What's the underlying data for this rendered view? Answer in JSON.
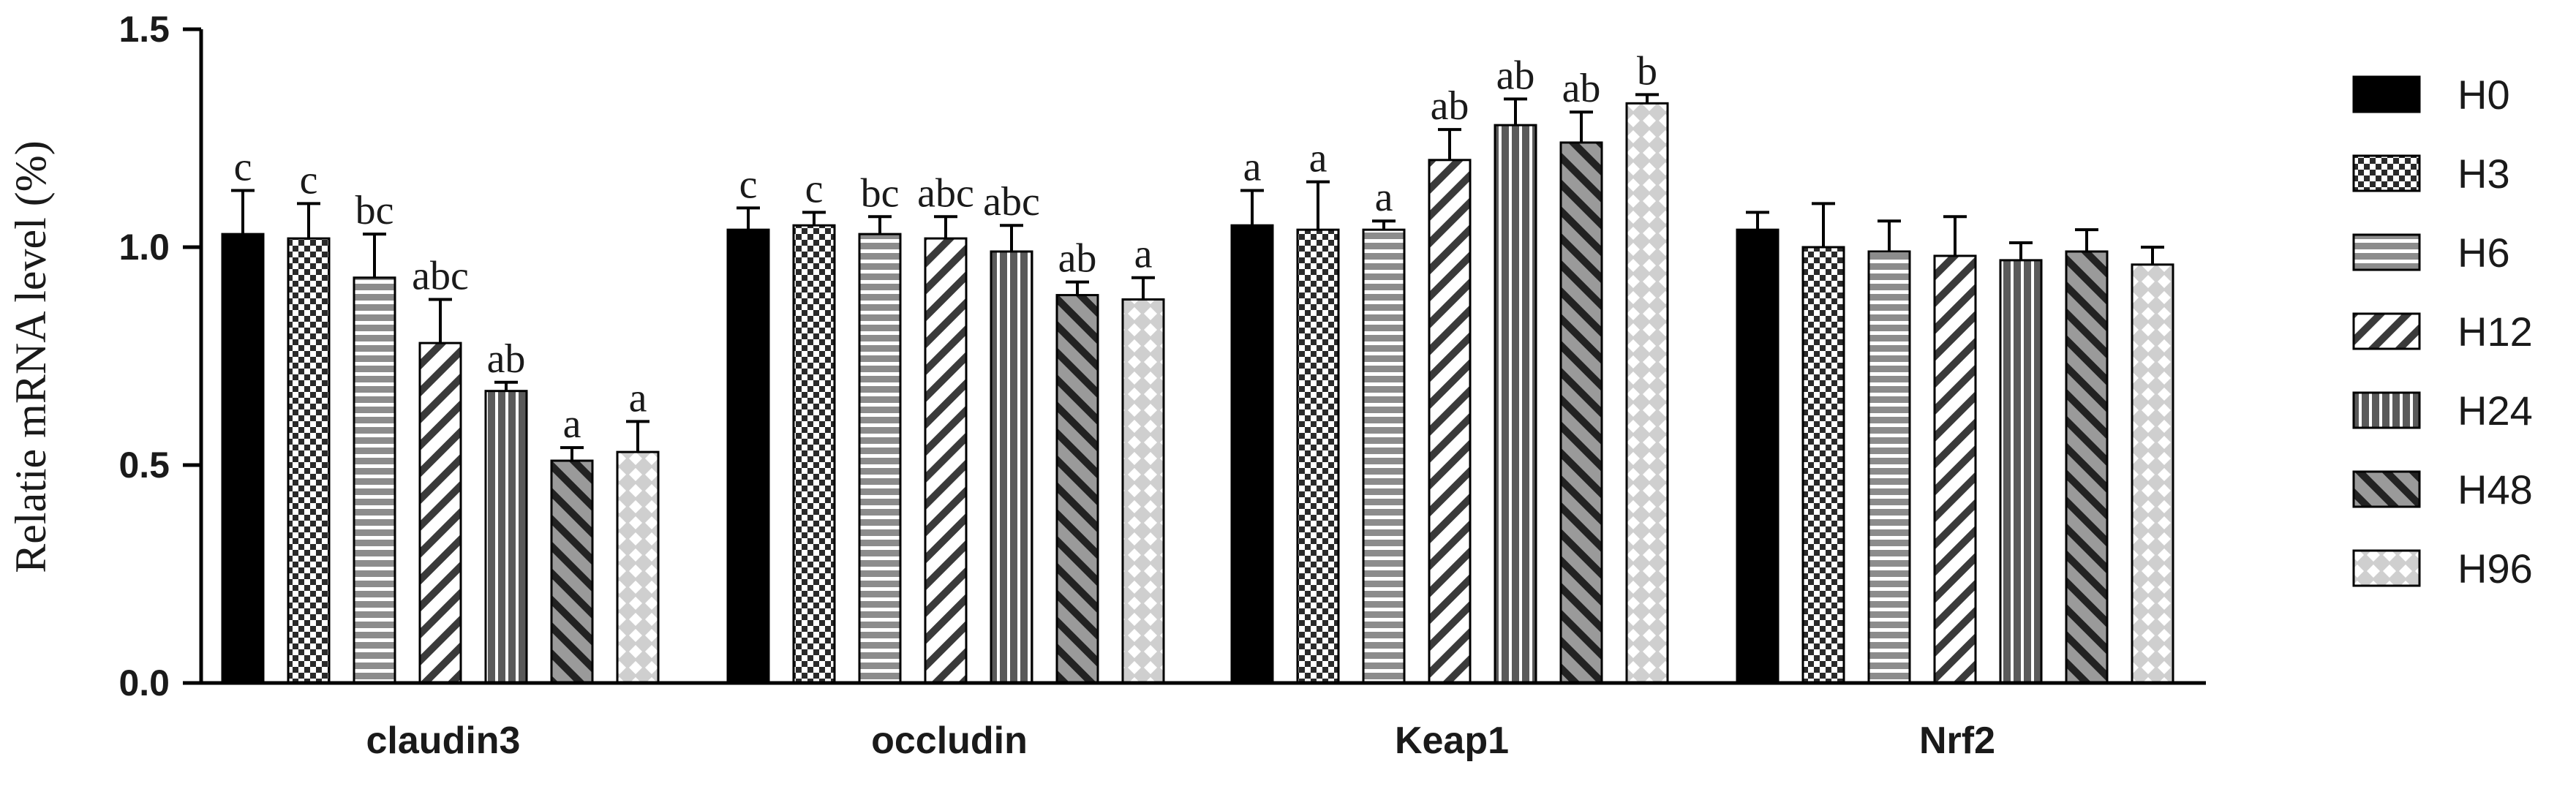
{
  "chart_data": {
    "type": "bar",
    "ylabel": "Relatie mRNA level (%)",
    "xlabel": "",
    "ylim": [
      0,
      1.5
    ],
    "yticks": [
      "0.0",
      "0.5",
      "1.0",
      "1.5"
    ],
    "categories": [
      "claudin3",
      "occludin",
      "Keap1",
      "Nrf2"
    ],
    "legend_position": "right",
    "series": [
      {
        "name": "H0",
        "pattern": "solid",
        "values": [
          1.03,
          1.04,
          1.05,
          1.04
        ],
        "errors": [
          0.1,
          0.05,
          0.08,
          0.04
        ],
        "letters": [
          "c",
          "c",
          "a",
          ""
        ]
      },
      {
        "name": "H3",
        "pattern": "checker",
        "values": [
          1.02,
          1.05,
          1.04,
          1.0
        ],
        "errors": [
          0.08,
          0.03,
          0.11,
          0.1
        ],
        "letters": [
          "c",
          "c",
          "a",
          ""
        ]
      },
      {
        "name": "H6",
        "pattern": "horizontal",
        "values": [
          0.93,
          1.03,
          1.04,
          0.99
        ],
        "errors": [
          0.1,
          0.04,
          0.02,
          0.07
        ],
        "letters": [
          "bc",
          "bc",
          "a",
          ""
        ]
      },
      {
        "name": "H12",
        "pattern": "diagonal-down",
        "values": [
          0.78,
          1.02,
          1.2,
          0.98
        ],
        "errors": [
          0.1,
          0.05,
          0.07,
          0.09
        ],
        "letters": [
          "abc",
          "abc",
          "ab",
          ""
        ]
      },
      {
        "name": "H24",
        "pattern": "vertical",
        "values": [
          0.67,
          0.99,
          1.28,
          0.97
        ],
        "errors": [
          0.02,
          0.06,
          0.06,
          0.04
        ],
        "letters": [
          "ab",
          "abc",
          "ab",
          ""
        ]
      },
      {
        "name": "H48",
        "pattern": "diagonal-up",
        "values": [
          0.51,
          0.89,
          1.24,
          0.99
        ],
        "errors": [
          0.03,
          0.03,
          0.07,
          0.05
        ],
        "letters": [
          "a",
          "ab",
          "ab",
          ""
        ]
      },
      {
        "name": "H96",
        "pattern": "diamond",
        "values": [
          0.53,
          0.88,
          1.33,
          0.96
        ],
        "errors": [
          0.07,
          0.05,
          0.02,
          0.04
        ],
        "letters": [
          "a",
          "a",
          "b",
          ""
        ]
      }
    ]
  }
}
